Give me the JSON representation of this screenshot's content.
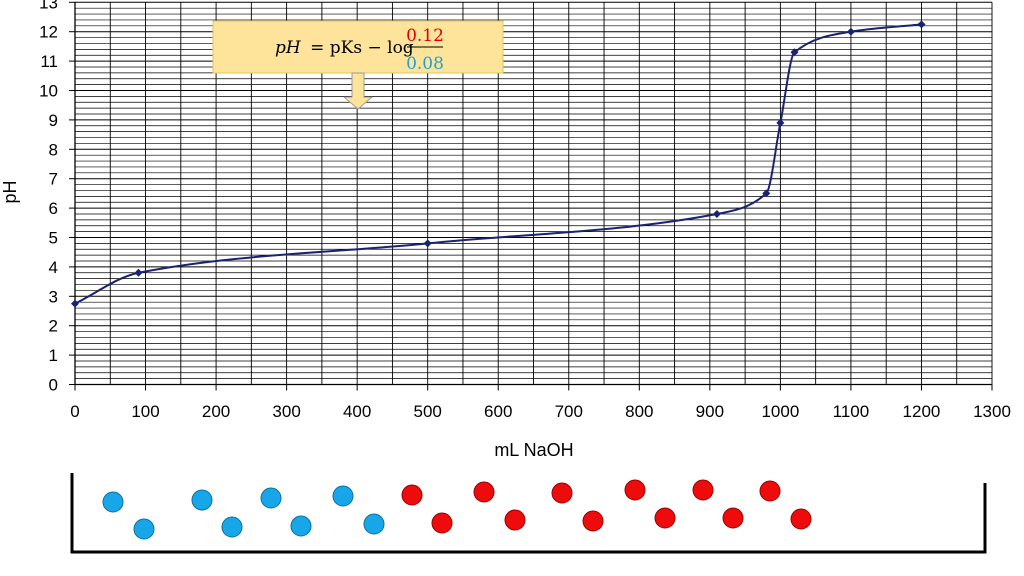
{
  "chart_data": {
    "type": "line",
    "title": "",
    "xlabel": "mL NaOH",
    "ylabel": "pH",
    "xlim": [
      0,
      1300
    ],
    "ylim": [
      0,
      13
    ],
    "x_ticks": [
      0,
      100,
      200,
      300,
      400,
      500,
      600,
      700,
      800,
      900,
      1000,
      1100,
      1200,
      1300
    ],
    "y_ticks": [
      0,
      1,
      2,
      3,
      4,
      5,
      6,
      7,
      8,
      9,
      10,
      11,
      12,
      13
    ],
    "grid": true,
    "minor_y_gridlines_per_unit": 5,
    "series": [
      {
        "color": "#1a2370",
        "points": [
          {
            "x": 0,
            "y": 2.75
          },
          {
            "x": 90,
            "y": 3.8
          },
          {
            "x": 500,
            "y": 4.8
          },
          {
            "x": 910,
            "y": 5.8
          },
          {
            "x": 980,
            "y": 6.5
          },
          {
            "x": 1000,
            "y": 8.9
          },
          {
            "x": 1020,
            "y": 11.3
          },
          {
            "x": 1100,
            "y": 12.0
          },
          {
            "x": 1200,
            "y": 12.25
          }
        ]
      }
    ],
    "annotation": {
      "formula_lhs": "pH",
      "formula_middle": "= pKs − log",
      "numerator": "0.12",
      "denominator": "0.08",
      "numerator_color": "#e00000",
      "denominator_color": "#1fa0d8",
      "box_color": "#fde49a",
      "arrow_points_to_x": 400
    }
  },
  "beaker": {
    "blue_color": "#17a7e8",
    "red_color": "#ee0b0b",
    "blue_count": 8,
    "red_count": 12
  }
}
